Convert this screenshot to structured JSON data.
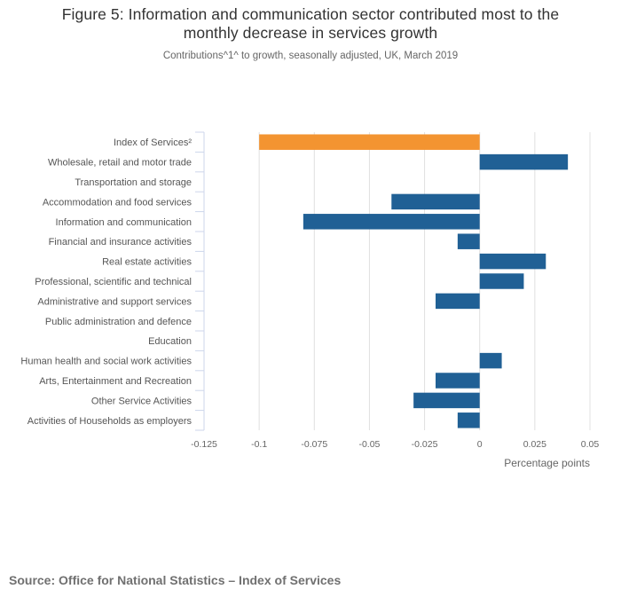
{
  "title_line1": "Figure 5: Information and communication sector contributed most to the",
  "title_line2": "monthly decrease in services growth",
  "subtitle": "Contributions^1^ to growth, seasonally adjusted, UK, March 2019",
  "source": "Source: Office for National Statistics – Index of Services",
  "colors": {
    "highlight": "#f39431",
    "bar": "#206095",
    "gridline": "#e0e0e0",
    "axis": "#ccd6eb"
  },
  "chart_data": {
    "type": "bar",
    "orientation": "horizontal",
    "title": "Figure 5: Information and communication sector contributed most to the monthly decrease in services growth",
    "subtitle": "Contributions^1^ to growth, seasonally adjusted, UK, March 2019",
    "xlabel": "Percentage points",
    "ylabel": "",
    "xlim": [
      -0.125,
      0.05
    ],
    "xticks": [
      -0.125,
      -0.1,
      -0.075,
      -0.05,
      -0.025,
      0,
      0.025,
      0.05
    ],
    "xtick_labels": [
      "-0.125",
      "-0.1",
      "-0.075",
      "-0.05",
      "-0.025",
      "0",
      "0.025",
      "0.05"
    ],
    "grid": true,
    "legend": "none",
    "categories": [
      "Index of Services²",
      "Wholesale, retail and motor trade",
      "Transportation and storage",
      "Accommodation and food services",
      "Information and communication",
      "Financial and insurance activities",
      "Real estate activities",
      "Professional, scientific and technical",
      "Administrative and support services",
      "Public administration and defence",
      "Education",
      "Human health and social work activities",
      "Arts, Entertainment and Recreation",
      "Other Service Activities",
      "Activities of Households as employers"
    ],
    "values": [
      -0.1,
      0.04,
      0,
      -0.04,
      -0.08,
      -0.01,
      0.03,
      0.02,
      -0.02,
      0,
      0,
      0.01,
      -0.02,
      -0.03,
      -0.01
    ],
    "highlight_index": 0
  }
}
